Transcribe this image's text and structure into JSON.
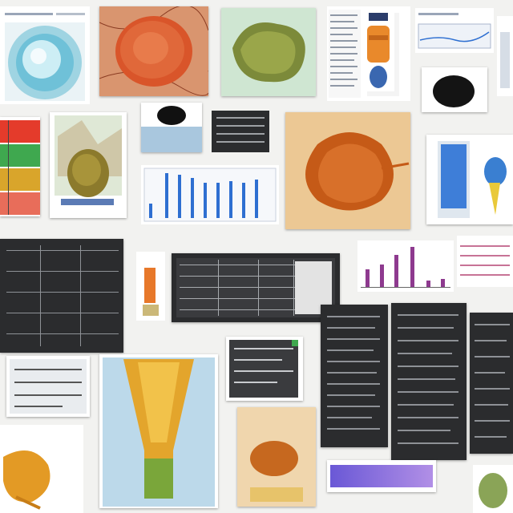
{
  "colors": {
    "background": "#f2f2f0",
    "panel_dark": "#2b2c2e",
    "bar_blue": "#2e6fd1",
    "bar_purple": "#8e3a8f",
    "organ_orange": "#c9661f",
    "cyan": "#5cc3d6",
    "swatch_row": [
      "#e43b2b",
      "#3fa84f",
      "#d9a52b",
      "#e86d5a"
    ]
  },
  "tiles": [
    {
      "name": "cyan-sphere-figure",
      "icon": "sphere-icon"
    },
    {
      "name": "red-membrane-figure",
      "icon": "membrane-icon"
    },
    {
      "name": "green-tissue-figure",
      "icon": "tissue-icon"
    },
    {
      "name": "text-document-top",
      "icon": "document-icon"
    },
    {
      "name": "orange-capsule-figure",
      "icon": "capsule-icon"
    },
    {
      "name": "blue-graph-thumbnail",
      "icon": "graph-icon"
    },
    {
      "name": "color-swatch-chart",
      "icon": "swatch-icon"
    },
    {
      "name": "seed-illustration",
      "icon": "seed-icon"
    },
    {
      "name": "blue-bar-chart",
      "icon": "bar-chart-icon"
    },
    {
      "name": "orange-organ-figure",
      "icon": "organ-icon"
    },
    {
      "name": "blue-gel-figure",
      "icon": "gel-icon"
    },
    {
      "name": "dark-spreadsheet-left",
      "icon": "table-icon"
    },
    {
      "name": "dark-spreadsheet-center",
      "icon": "table-icon"
    },
    {
      "name": "purple-bar-chart",
      "icon": "bar-chart-icon"
    },
    {
      "name": "funnel-cross-section",
      "icon": "funnel-icon"
    },
    {
      "name": "orange-specimen-photo",
      "icon": "specimen-icon"
    },
    {
      "name": "dark-text-panels",
      "icon": "document-icon"
    }
  ]
}
